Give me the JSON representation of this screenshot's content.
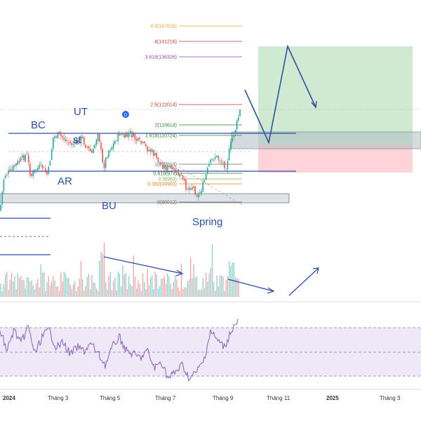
{
  "chart_data": {
    "type": "candlestick",
    "x_tick_labels": [
      "2024",
      "Tháng 3",
      "Tháng 5",
      "Tháng 7",
      "Tháng 9",
      "Tháng 11",
      "2025",
      "Tháng 3"
    ],
    "fibonacci_levels": [
      {
        "label": "4.5(147616)",
        "color": "#e6a23c"
      },
      {
        "label": "4(141216)",
        "color": "#c0392b"
      },
      {
        "label": "3.618(136326)",
        "color": "#8e44ad"
      },
      {
        "label": "2.5(122014)",
        "color": "#c0392b"
      },
      {
        "label": "2(115614)",
        "color": "#2e7d32"
      },
      {
        "label": "1.618(110724)",
        "color": "#2e7d32"
      },
      {
        "label": "1(102813)",
        "color": "#666666"
      },
      {
        "label": "0.618(97x)",
        "color": "#2e7d32"
      },
      {
        "label": "0.5(963)",
        "color": "#7cb342"
      },
      {
        "label": "0.382(94903)",
        "color": "#e67e22"
      },
      {
        "label": "0(90012)",
        "color": "#666666"
      }
    ],
    "wyckoff_labels": {
      "ut": "UT",
      "bc": "BC",
      "st": "st",
      "ar": "AR",
      "bu": "BU",
      "spring": "Spring",
      "marker": "D"
    },
    "colors": {
      "up": "#26a69a",
      "down": "#ef5350",
      "annotation": "#2f4ea8",
      "rsi": "#8e6bbf",
      "target_zone": "#c8e6c9",
      "stop_zone": "#ffcdd2"
    }
  }
}
